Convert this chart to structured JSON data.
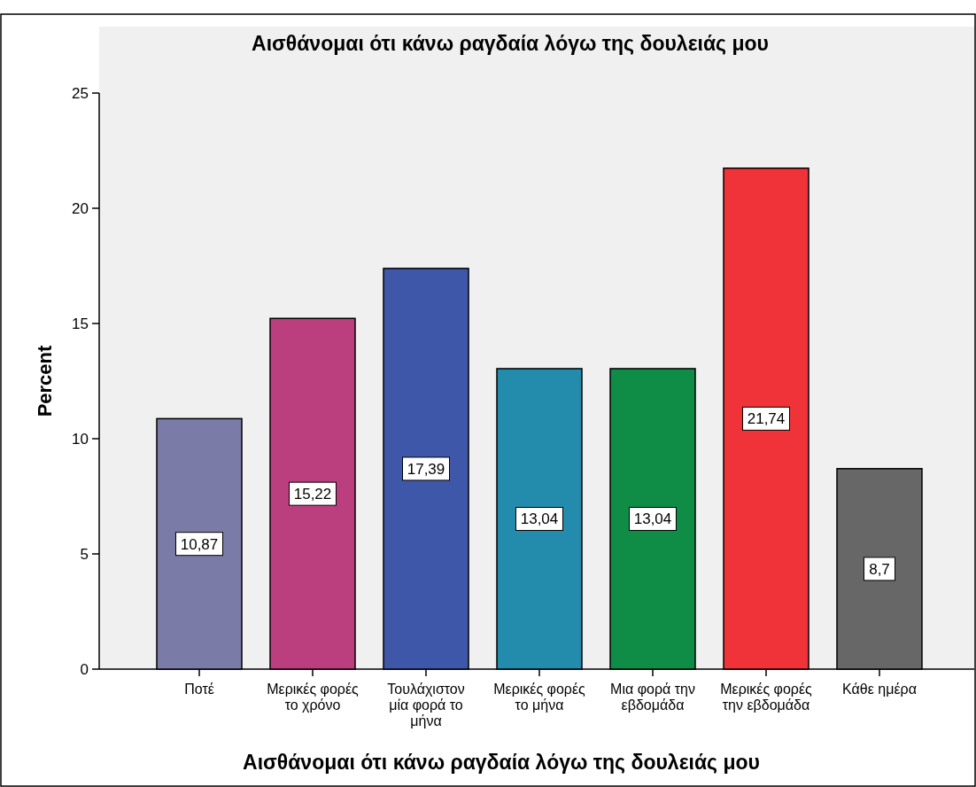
{
  "chart_data": {
    "type": "bar",
    "title": "Αισθάνομαι ότι κάνω ραγδαία λόγω της δουλειάς μου",
    "xlabel": "Αισθάνομαι ότι κάνω ραγδαία λόγω της δουλειάς μου",
    "ylabel": "Percent",
    "categories": [
      "Ποτέ",
      "Μερικές φορές\nτο χρόνο",
      "Τουλάχιστον\nμία φορά το\nμήνα",
      "Μερικές φορές\nτο μήνα",
      "Μια φορά την\nεβδομάδα",
      "Μερικές φορές\nτην εβδομάδα",
      "Κάθε ημέρα"
    ],
    "values": [
      10.87,
      15.22,
      17.39,
      13.04,
      13.04,
      21.74,
      8.7
    ],
    "colors": [
      "#7b7ba8",
      "#bb3f7f",
      "#3f57a8",
      "#238bab",
      "#0f8c45",
      "#ef3338",
      "#676767"
    ],
    "value_labels": [
      "10,87",
      "15,22",
      "17,39",
      "13,04",
      "13,04",
      "21,74",
      "8,7"
    ],
    "ylim": [
      0,
      25
    ],
    "yticks": [
      0,
      5,
      10,
      15,
      20,
      25
    ],
    "grid": false
  }
}
